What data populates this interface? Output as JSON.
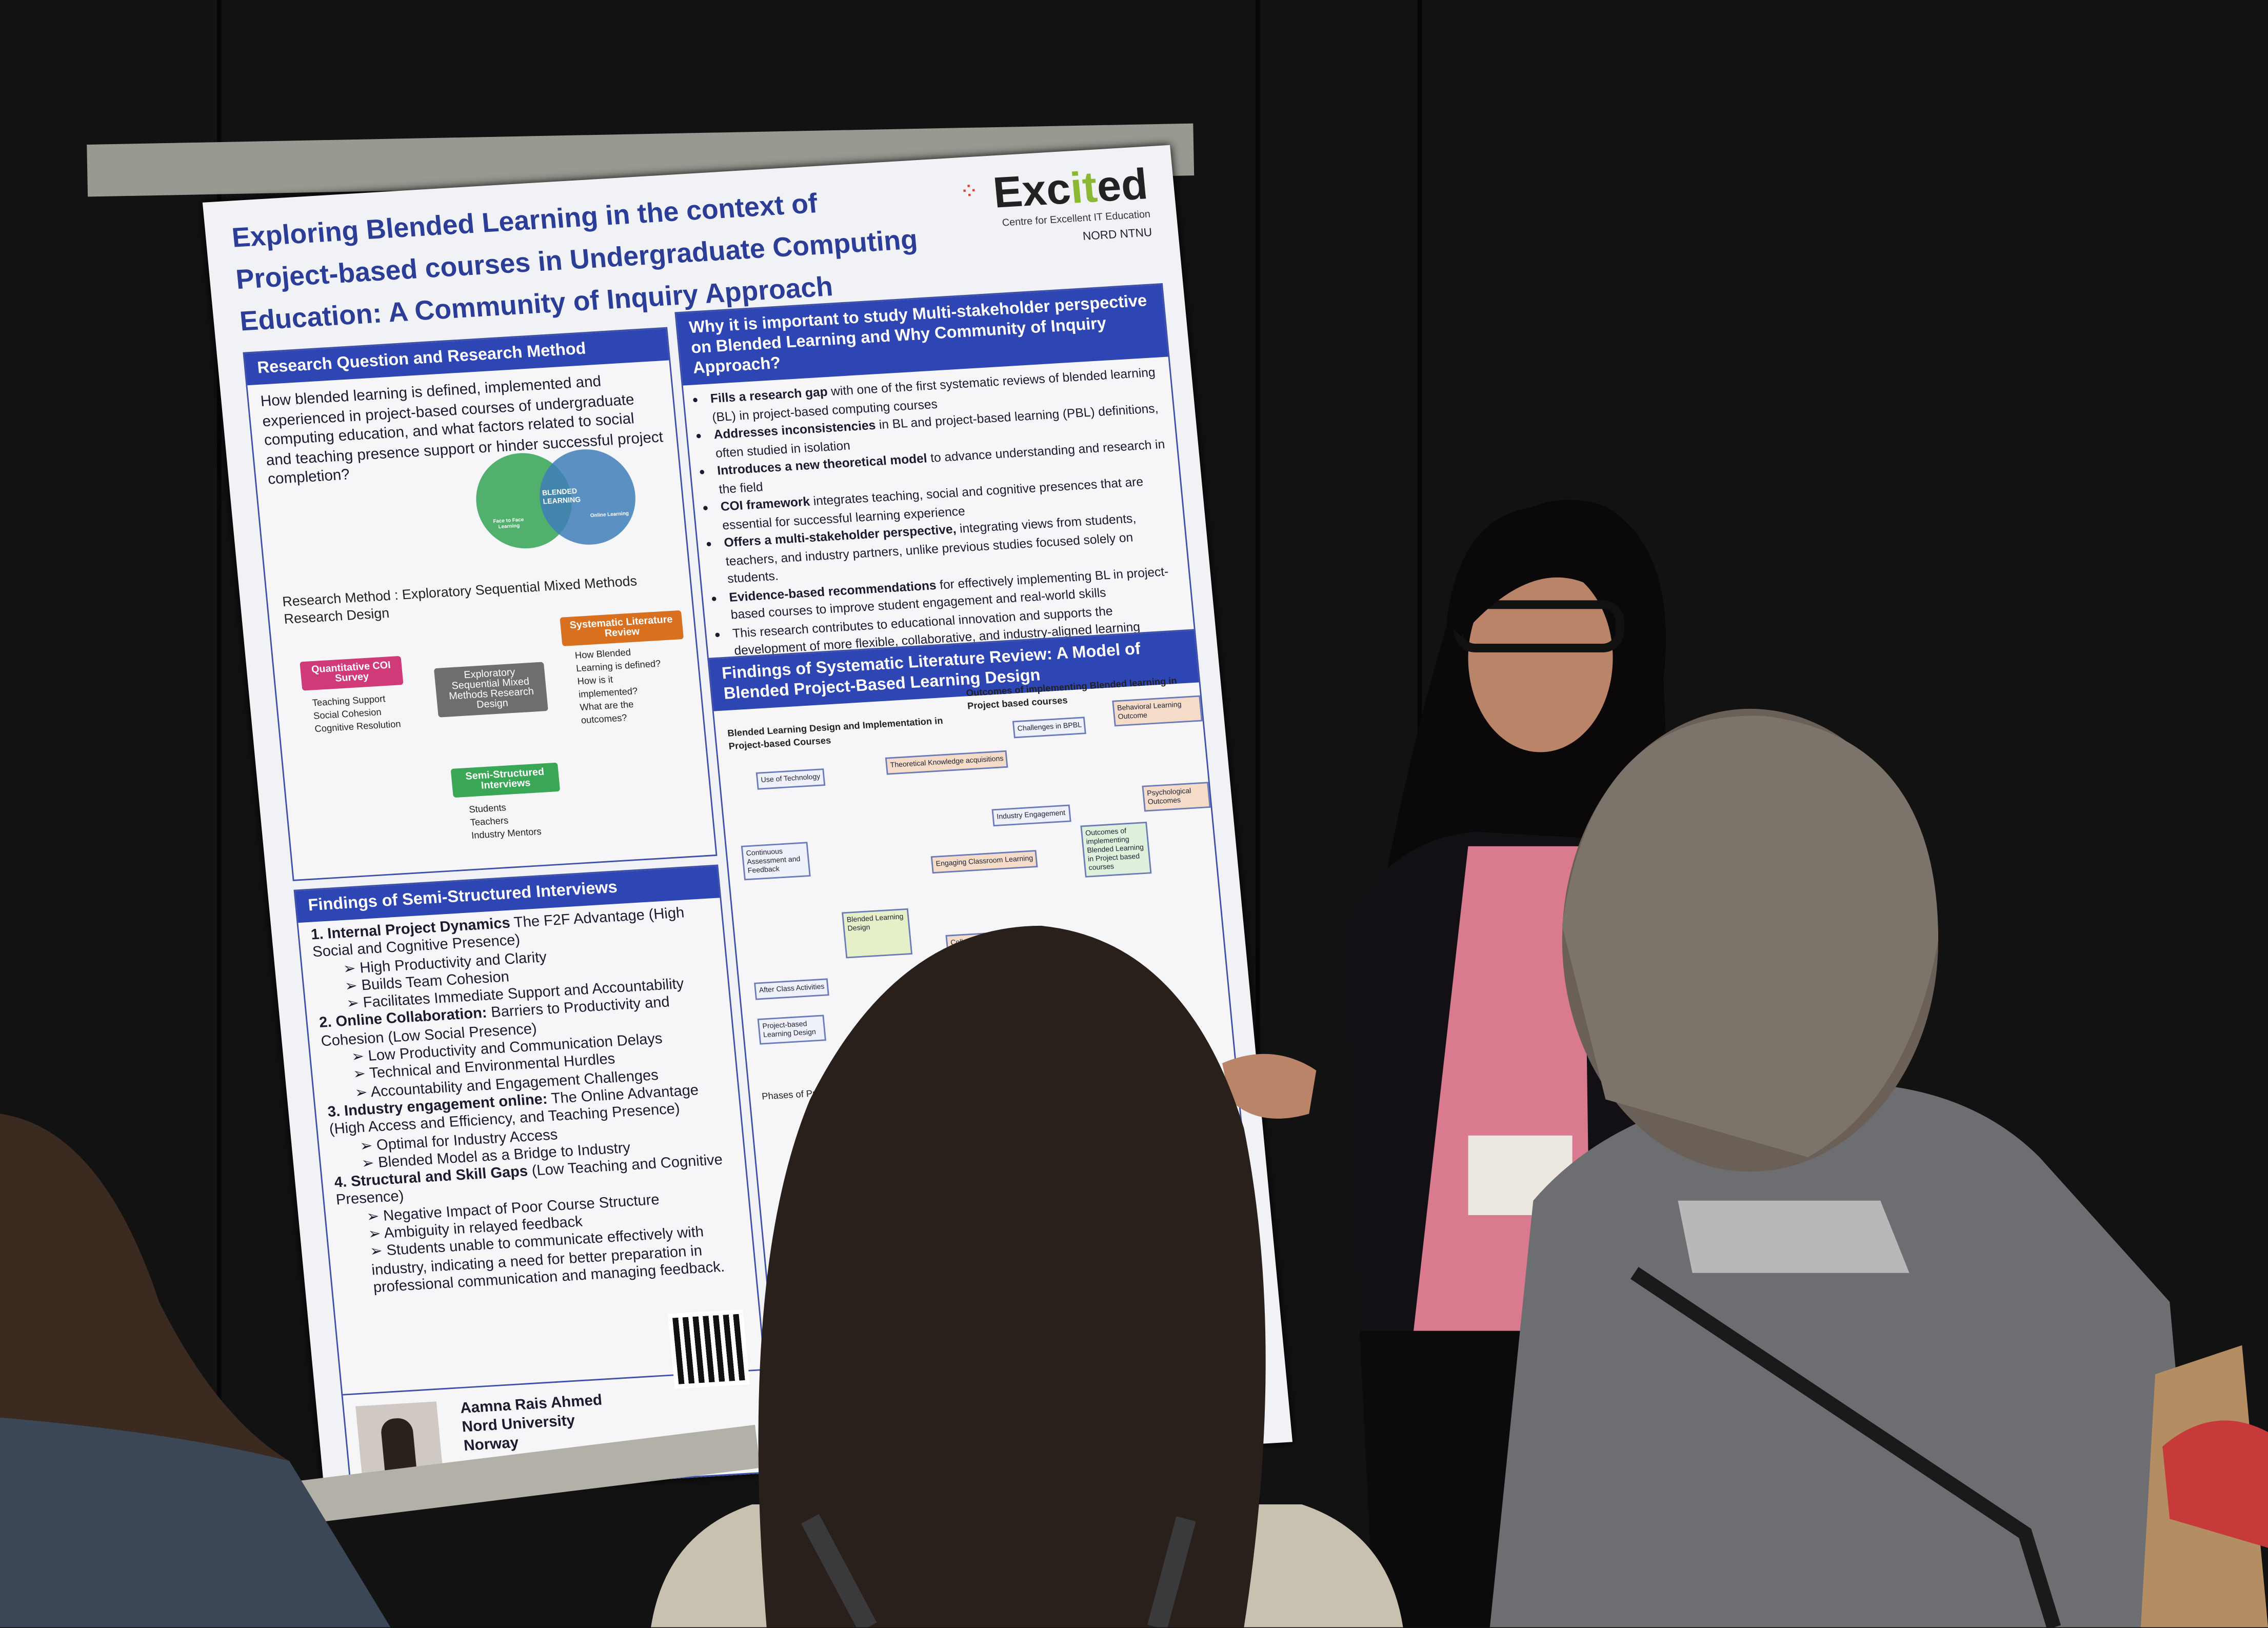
{
  "poster": {
    "title": "Exploring Blended Learning in the context of Project-based courses in Undergraduate Computing Education: A Community of Inquiry Approach",
    "logo": {
      "brand_a": "Exc",
      "brand_b": "it",
      "brand_c": "ed",
      "subtitle": "Centre for Excellent IT Education",
      "partners": "NORD  NTNU"
    },
    "research_question": {
      "header": "Research Question and Research Method",
      "question": "How blended learning is defined, implemented and experienced in project-based courses of undergraduate computing education, and what factors related to social and teaching presence support or hinder successful project completion?",
      "venn_label": "BLENDED LEARNING",
      "venn_left": "Face to Face Learning",
      "venn_right": "Online Learning",
      "method": "Research Method : Exploratory Sequential Mixed Methods Research Design",
      "survey": "Quantitative COI Survey",
      "survey_items": [
        "Teaching Support",
        "Social Cohesion",
        "Cognitive Resolution"
      ],
      "center": "Exploratory Sequential Mixed Methods Research Design",
      "review": "Systematic Literature Review",
      "review_items": [
        "How Blended Learning is defined?",
        "How is it implemented?",
        "What are the outcomes?"
      ],
      "interviews": "Semi-Structured Interviews",
      "interview_items": [
        "Students",
        "Teachers",
        "Industry Mentors"
      ]
    },
    "why": {
      "header": "Why it is important to study Multi-stakeholder perspective on Blended Learning and Why Community of Inquiry Approach?",
      "bullets": [
        {
          "bold": "Fills a research gap",
          "rest": " with one of the first systematic reviews of blended learning (BL) in project-based computing courses"
        },
        {
          "bold": "Addresses inconsistencies",
          "rest": " in BL and project-based learning (PBL) definitions, often studied in isolation"
        },
        {
          "bold": "Introduces a new theoretical model",
          "rest": " to advance understanding and research in the field"
        },
        {
          "bold": "COI framework",
          "rest": " integrates teaching, social and cognitive presences that are essential for successful learning experience"
        },
        {
          "bold": "Offers a multi-stakeholder perspective,",
          "rest": " integrating views from students, teachers, and industry partners, unlike previous studies focused solely on students."
        },
        {
          "bold": "Evidence-based recommendations",
          "rest": " for effectively implementing BL in project-based courses to improve student engagement and real-world skills"
        },
        {
          "bold": "",
          "rest": "This research contributes to educational innovation and supports the development of more flexible, collaborative, and industry-aligned learning environments in higher education"
        }
      ]
    },
    "slr": {
      "header": "Findings of Systematic Literature Review: A Model of Blended Project-Based Learning Design",
      "left_caption": "Blended Learning Design and Implementation in Project-based Courses",
      "right_caption": "Outcomes of implementing Blended learning in Project based courses",
      "nodes": [
        "Use of Technology",
        "Theoretical Knowledge acquisitions",
        "Challenges in BPBL",
        "Behavioral Learning Outcome",
        "Continuous Assessment and Feedback",
        "Industry Engagement",
        "Psychological Outcomes",
        "Engaging Classroom Learning",
        "Blended Learning Design",
        "After Class Activities",
        "Collaborative Work",
        "Project-based Learning Design",
        "Outcomes of implementing Blended Learning in Project based courses"
      ],
      "phases": "Phases of Project work"
    },
    "interviews": {
      "header": "Findings of Semi-Structured Interviews",
      "sections": [
        {
          "bold": "1. Internal Project Dynamics",
          "rest": " The F2F Advantage (High Social and Cognitive Presence)",
          "items": [
            "High Productivity and Clarity",
            "Builds Team Cohesion",
            "Facilitates Immediate Support and Accountability"
          ]
        },
        {
          "bold": "2. Online Collaboration:",
          "rest": " Barriers to Productivity and Cohesion (Low Social Presence)",
          "items": [
            "Low Productivity and Communication Delays",
            "Technical and Environmental Hurdles",
            "Accountability and Engagement Challenges"
          ]
        },
        {
          "bold": "3. Industry engagement online:",
          "rest": " The Online Advantage (High Access and Efficiency, and Teaching Presence)",
          "items": [
            "Optimal for Industry Access",
            "Blended Model as a Bridge to Industry"
          ]
        },
        {
          "bold": "4. Structural and Skill Gaps",
          "rest": " (Low Teaching and Cognitive Presence)",
          "items": [
            "Negative Impact of Poor Course Structure",
            "Ambiguity in relayed feedback",
            "Students unable to communicate effectively with industry, indicating a need for better preparation in professional communication and managing feedback."
          ]
        }
      ]
    },
    "author": {
      "name": "Aamna Rais Ahmed",
      "university": "Nord University",
      "country": "Norway"
    }
  },
  "colors": {
    "poster_blue": "#2e45b4",
    "title_blue": "#2b3d96",
    "survey_pink": "#d13a78",
    "review_orange": "#d9701f",
    "interview_green": "#3aa757",
    "center_gray": "#6e6e70",
    "background": "#121213"
  }
}
